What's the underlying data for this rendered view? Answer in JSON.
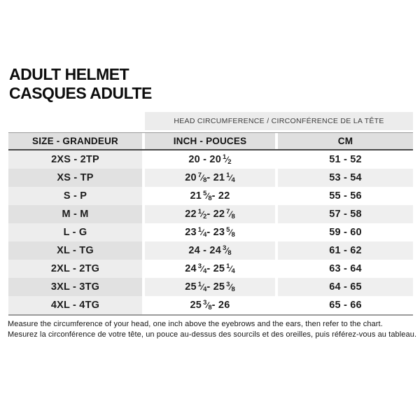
{
  "title": {
    "line1": "ADULT HELMET",
    "line2": "CASQUES ADULTE"
  },
  "table": {
    "span_header": "HEAD CIRCUMFERENCE / CIRCONFÉRENCE DE LA TÊTE",
    "columns": [
      "SIZE - GRANDEUR",
      "INCH - POUCES",
      "CM"
    ],
    "rows": [
      {
        "size": "2XS - 2TP",
        "inch": "20 - 20 1/2",
        "cm": "51 - 52"
      },
      {
        "size": "XS - TP",
        "inch": "20 7/8 - 21 1/4",
        "cm": "53 - 54"
      },
      {
        "size": "S - P",
        "inch": "21 5/8 - 22",
        "cm": "55 - 56"
      },
      {
        "size": "M - M",
        "inch": "22 1/2 - 22 7/8",
        "cm": "57 - 58"
      },
      {
        "size": "L - G",
        "inch": "23 1/4 - 23 5/8",
        "cm": "59 - 60"
      },
      {
        "size": "XL - TG",
        "inch": "24 - 24 3/8",
        "cm": "61 - 62"
      },
      {
        "size": "2XL - 2TG",
        "inch": "24 3/4 - 25 1/4",
        "cm": "63 - 64"
      },
      {
        "size": "3XL - 3TG",
        "inch": "25 1/4 - 25 3/8",
        "cm": "64 - 65"
      },
      {
        "size": "4XL - 4TG",
        "inch": "25 3/8 - 26",
        "cm": "65 - 66"
      }
    ]
  },
  "footer": {
    "line1_en": "Measure the circumference of your head, one inch above the eyebrows and the ears, then refer to the chart.",
    "line2_fr": "Mesurez la circonférence de votre tête, un pouce au-dessus des sourcils et des oreilles, puis référez-vous au tableau."
  },
  "colors": {
    "background": "#ffffff",
    "text": "#141414",
    "band_bg": "#ececec",
    "header_bg": "#dfdfdf",
    "stripe_a_col1": "#ededed",
    "stripe_b_col1": "#e1e1e1",
    "stripe_b": "#efefef",
    "border_dark": "#474747",
    "border_gray": "#9b9b9b"
  }
}
